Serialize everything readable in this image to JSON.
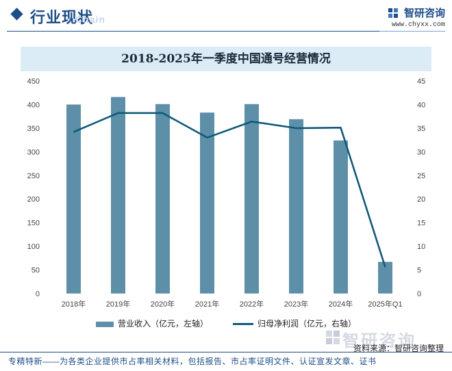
{
  "header": {
    "title": "行业现状",
    "watermark": "Chain",
    "brand_name": "智研咨询",
    "brand_url": "www.chyxx.com"
  },
  "chart_data": {
    "type": "bar",
    "title": "2018-2025年一季度中国通号经营情况",
    "categories": [
      "2018年",
      "2019年",
      "2020年",
      "2021年",
      "2022年",
      "2023年",
      "2024年",
      "2025年Q1"
    ],
    "series": [
      {
        "name": "营业收入（亿元，左轴）",
        "type": "bar",
        "axis": "left",
        "color": "#5e8fa8",
        "values": [
          400,
          416,
          401,
          383,
          401,
          369,
          324,
          67
        ]
      },
      {
        "name": "归母净利润（亿元，右轴）",
        "type": "line",
        "axis": "right",
        "color": "#0f5a78",
        "values": [
          34.2,
          38.2,
          38.2,
          33.0,
          36.4,
          35.0,
          35.1,
          5.6
        ]
      }
    ],
    "left_axis": {
      "ylim": [
        0,
        450
      ],
      "ticks": [
        "0",
        "50",
        "100",
        "150",
        "200",
        "250",
        "300",
        "350",
        "400",
        "450"
      ]
    },
    "right_axis": {
      "ylim": [
        0,
        45
      ],
      "ticks": [
        "0",
        "5",
        "10",
        "15",
        "20",
        "25",
        "30",
        "35",
        "40",
        "45"
      ]
    },
    "legend_position": "bottom",
    "grid": false
  },
  "source": "资料来源：智研咨询整理",
  "source_watermark": "智研咨询",
  "footer": "专精特新——为各类企业提供市占率相关材料，包括报告、市占率证明文件、认证宣发文章、证书"
}
